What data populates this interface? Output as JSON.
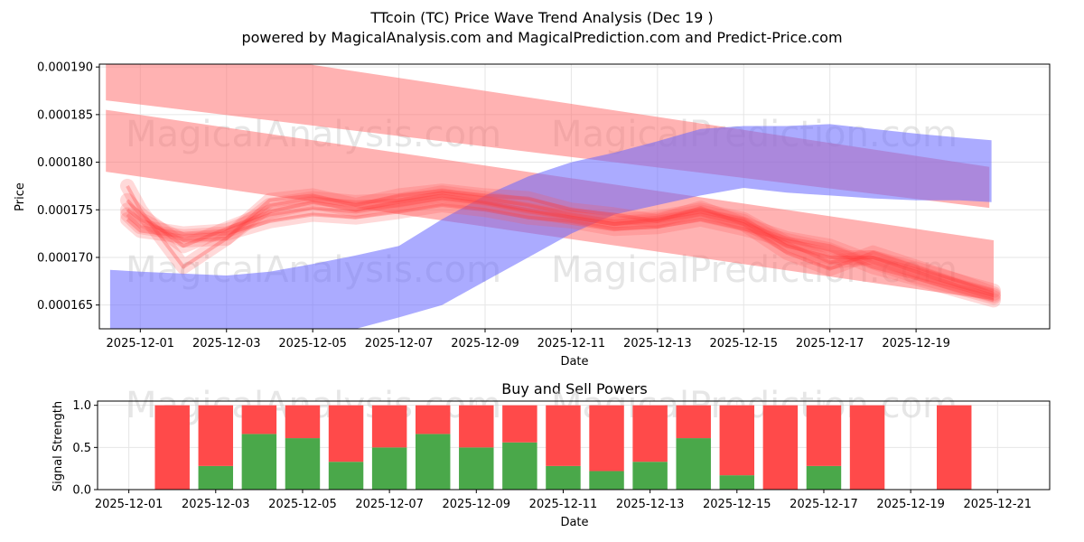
{
  "chart_data": [
    {
      "type": "line",
      "title": "TTcoin (TC) Price Wave Trend Analysis (Dec 19 )",
      "subtitle": "powered by MagicalAnalysis.com and MagicalPrediction.com and Predict-Price.com",
      "xlabel": "Date",
      "ylabel": "Price",
      "xlim": [
        -0.95,
        21.1
      ],
      "ylim": [
        0.0001625,
        0.0001903
      ],
      "x_ticks": [
        {
          "x": 0,
          "label": "2025-12-01"
        },
        {
          "x": 2,
          "label": "2025-12-03"
        },
        {
          "x": 4,
          "label": "2025-12-05"
        },
        {
          "x": 6,
          "label": "2025-12-07"
        },
        {
          "x": 8,
          "label": "2025-12-09"
        },
        {
          "x": 10,
          "label": "2025-12-11"
        },
        {
          "x": 12,
          "label": "2025-12-13"
        },
        {
          "x": 14,
          "label": "2025-12-15"
        },
        {
          "x": 16,
          "label": "2025-12-17"
        },
        {
          "x": 18,
          "label": "2025-12-19"
        }
      ],
      "y_ticks": [
        {
          "y": 0.000165,
          "label": "0.000165"
        },
        {
          "y": 0.00017,
          "label": "0.000170"
        },
        {
          "y": 0.000175,
          "label": "0.000175"
        },
        {
          "y": 0.00018,
          "label": "0.000180"
        },
        {
          "y": 0.000185,
          "label": "0.000185"
        },
        {
          "y": 0.00019,
          "label": "0.000190"
        }
      ],
      "grid": true,
      "watermarks": [
        "MagicalAnalysis.com",
        "MagicalPrediction.com",
        "MagicalAnalysis.com",
        "MagicalPrediction.com"
      ],
      "bands": [
        {
          "name": "upper-trend-band",
          "color": "#ff6666",
          "opacity": 0.5,
          "x": [
            -0.8,
            19.7
          ],
          "upper": [
            0.0001935,
            0.0001795
          ],
          "lower": [
            0.0001865,
            0.0001752
          ]
        },
        {
          "name": "lower-trend-band",
          "color": "#ff6666",
          "opacity": 0.5,
          "x": [
            -0.8,
            19.8
          ],
          "upper": [
            0.0001855,
            0.0001718
          ],
          "lower": [
            0.000179,
            0.0001655
          ]
        },
        {
          "name": "blue-wave-band",
          "color": "#6666ff",
          "opacity": 0.55,
          "x": [
            -0.7,
            0,
            1,
            2,
            3,
            4,
            5,
            6,
            7,
            8,
            9,
            10,
            11,
            12,
            13,
            14,
            15,
            16,
            17,
            18,
            19,
            19.75
          ],
          "upper": [
            0.0001687,
            0.0001685,
            0.0001683,
            0.0001681,
            0.0001685,
            0.0001693,
            0.0001702,
            0.0001712,
            0.000174,
            0.0001765,
            0.0001785,
            0.00018,
            0.000181,
            0.0001822,
            0.0001835,
            0.0001838,
            0.0001838,
            0.000184,
            0.0001835,
            0.000183,
            0.0001826,
            0.0001823
          ],
          "lower": [
            0.000161,
            0.0001605,
            0.00016,
            0.0001595,
            0.0001598,
            0.0001612,
            0.0001625,
            0.0001637,
            0.000165,
            0.0001675,
            0.00017,
            0.0001725,
            0.0001745,
            0.0001755,
            0.0001765,
            0.0001773,
            0.0001768,
            0.0001765,
            0.0001762,
            0.000176,
            0.000176,
            0.0001758
          ]
        }
      ],
      "wave_lines": [
        {
          "x": [
            -0.3,
            0,
            1,
            2,
            3,
            4,
            5,
            6,
            7,
            8,
            9,
            10,
            11,
            12,
            13,
            14,
            15,
            16,
            17,
            18,
            19,
            19.8
          ],
          "y": [
            0.0001745,
            0.0001732,
            0.0001725,
            0.0001728,
            0.0001745,
            0.0001752,
            0.0001748,
            0.0001755,
            0.0001762,
            0.0001757,
            0.0001748,
            0.0001742,
            0.0001735,
            0.0001738,
            0.0001745,
            0.0001735,
            0.000172,
            0.0001712,
            0.0001695,
            0.000168,
            0.0001668,
            0.0001658
          ]
        },
        {
          "x": [
            -0.3,
            0,
            1,
            2,
            3,
            4,
            5,
            6,
            7,
            8,
            9,
            10,
            11,
            12,
            13,
            14,
            15,
            16,
            17,
            18,
            19,
            19.8
          ],
          "y": [
            0.000175,
            0.000174,
            0.0001718,
            0.000172,
            0.0001755,
            0.0001762,
            0.0001758,
            0.000176,
            0.0001768,
            0.0001762,
            0.0001755,
            0.0001745,
            0.0001738,
            0.0001742,
            0.000175,
            0.000174,
            0.0001715,
            0.0001695,
            0.00017,
            0.0001688,
            0.0001675,
            0.0001665
          ]
        },
        {
          "x": [
            -0.3,
            0,
            1,
            2,
            3,
            4,
            5,
            6,
            7,
            8,
            9,
            10,
            11,
            12,
            13,
            14,
            15,
            16,
            17,
            18,
            19,
            19.8
          ],
          "y": [
            0.0001775,
            0.000175,
            0.000169,
            0.000172,
            0.000176,
            0.0001765,
            0.0001755,
            0.0001765,
            0.000177,
            0.0001765,
            0.0001762,
            0.000175,
            0.0001745,
            0.0001738,
            0.0001752,
            0.0001735,
            0.0001705,
            0.0001688,
            0.0001705,
            0.000169,
            0.0001675,
            0.0001662
          ]
        },
        {
          "x": [
            -0.3,
            0,
            1,
            2,
            3,
            4,
            5,
            6,
            7,
            8,
            9,
            10,
            11,
            12,
            13,
            14,
            15,
            16,
            17,
            18,
            19,
            19.8
          ],
          "y": [
            0.000174,
            0.0001728,
            0.0001722,
            0.0001725,
            0.0001738,
            0.0001745,
            0.0001742,
            0.0001748,
            0.0001755,
            0.000175,
            0.0001742,
            0.0001738,
            0.000173,
            0.0001732,
            0.000174,
            0.000173,
            0.0001718,
            0.0001708,
            0.000169,
            0.0001678,
            0.0001665,
            0.0001655
          ]
        },
        {
          "x": [
            -0.3,
            0,
            1,
            2,
            3,
            4,
            5,
            6,
            7,
            8,
            9,
            10,
            11,
            12,
            13,
            14,
            15,
            16,
            17,
            18,
            19,
            19.8
          ],
          "y": [
            0.000176,
            0.0001745,
            0.0001712,
            0.000173,
            0.0001748,
            0.0001758,
            0.000175,
            0.0001758,
            0.0001765,
            0.0001758,
            0.000175,
            0.0001742,
            0.0001735,
            0.000174,
            0.0001748,
            0.0001738,
            0.0001712,
            0.00017,
            0.00017,
            0.0001685,
            0.000167,
            0.000166
          ]
        }
      ]
    },
    {
      "type": "bar",
      "title": "Buy and Sell Powers",
      "xlabel": "Date",
      "ylabel": "Signal Strength",
      "xlim": [
        -0.72,
        21.2
      ],
      "ylim": [
        0,
        1.05
      ],
      "x_ticks": [
        {
          "x": 0,
          "label": "2025-12-01"
        },
        {
          "x": 2,
          "label": "2025-12-03"
        },
        {
          "x": 4,
          "label": "2025-12-05"
        },
        {
          "x": 6,
          "label": "2025-12-07"
        },
        {
          "x": 8,
          "label": "2025-12-09"
        },
        {
          "x": 10,
          "label": "2025-12-11"
        },
        {
          "x": 12,
          "label": "2025-12-13"
        },
        {
          "x": 14,
          "label": "2025-12-15"
        },
        {
          "x": 16,
          "label": "2025-12-17"
        },
        {
          "x": 18,
          "label": "2025-12-19"
        },
        {
          "x": 20,
          "label": "2025-12-21"
        }
      ],
      "y_ticks": [
        {
          "y": 0,
          "label": "0.0"
        },
        {
          "y": 0.5,
          "label": "0.5"
        },
        {
          "y": 1,
          "label": "1.0"
        }
      ],
      "buy_color": "#4aa84a",
      "sell_color": "#ff4a4a",
      "bars": [
        {
          "x": 1,
          "buy": 0.0
        },
        {
          "x": 2,
          "buy": 0.28
        },
        {
          "x": 3,
          "buy": 0.66
        },
        {
          "x": 4,
          "buy": 0.61
        },
        {
          "x": 5,
          "buy": 0.33
        },
        {
          "x": 6,
          "buy": 0.5
        },
        {
          "x": 7,
          "buy": 0.66
        },
        {
          "x": 8,
          "buy": 0.5
        },
        {
          "x": 9,
          "buy": 0.56
        },
        {
          "x": 10,
          "buy": 0.28
        },
        {
          "x": 11,
          "buy": 0.22
        },
        {
          "x": 12,
          "buy": 0.33
        },
        {
          "x": 13,
          "buy": 0.61
        },
        {
          "x": 14,
          "buy": 0.17
        },
        {
          "x": 15,
          "buy": 0.0
        },
        {
          "x": 16,
          "buy": 0.28
        },
        {
          "x": 17,
          "buy": 0.0
        },
        {
          "x": 19,
          "buy": 0.0
        }
      ],
      "watermarks": [
        "MagicalAnalysis.com",
        "MagicalPrediction.com"
      ]
    }
  ]
}
